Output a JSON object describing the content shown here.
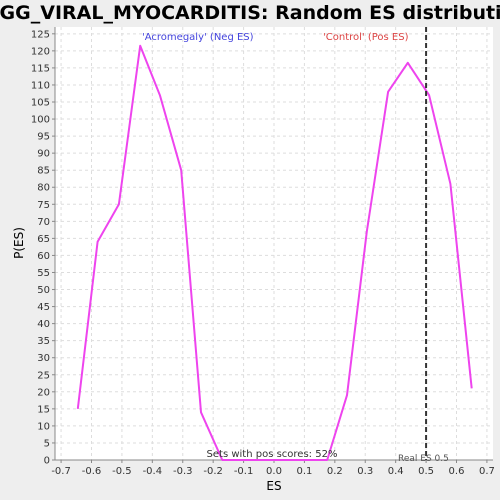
{
  "chart_data": {
    "type": "line",
    "title": "KEGG_VIRAL_MYOCARDITIS: Random ES distribution",
    "xlabel": "ES",
    "ylabel": "P(ES)",
    "xlim": [
      -0.72,
      0.72
    ],
    "ylim": [
      0,
      127
    ],
    "xticks": [
      -0.7,
      -0.6,
      -0.5,
      -0.4,
      -0.3,
      -0.2,
      -0.1,
      0.0,
      0.1,
      0.2,
      0.3,
      0.4,
      0.5,
      0.6,
      0.7
    ],
    "xtick_labels": [
      "-0.7",
      "-0.6",
      "-0.5",
      "-0.4",
      "-0.3",
      "-0.2",
      "-0.1",
      "0.0",
      "0.1",
      "0.2",
      "0.3",
      "0.4",
      "0.5",
      "0.6",
      "0.7"
    ],
    "yticks": [
      0,
      5,
      10,
      15,
      20,
      25,
      30,
      35,
      40,
      45,
      50,
      55,
      60,
      65,
      70,
      75,
      80,
      85,
      90,
      95,
      100,
      105,
      110,
      115,
      120,
      125
    ],
    "grid": true,
    "line_color": "#ee44ee",
    "series": [
      {
        "values": [
          [
            -0.645,
            15
          ],
          [
            -0.58,
            64
          ],
          [
            -0.51,
            75
          ],
          [
            -0.44,
            121.5
          ],
          [
            -0.375,
            107
          ],
          [
            -0.305,
            85
          ],
          [
            -0.24,
            14
          ],
          [
            -0.17,
            0
          ],
          [
            0.175,
            0
          ],
          [
            0.24,
            19
          ],
          [
            0.305,
            67
          ],
          [
            0.375,
            108
          ],
          [
            0.44,
            116.5
          ],
          [
            0.51,
            107
          ],
          [
            0.58,
            81
          ],
          [
            0.65,
            21
          ]
        ]
      }
    ],
    "real_es": 0.5,
    "real_es_color": "#333333",
    "annotations": {
      "neg_label": "'Acromegaly' (Neg ES)",
      "pos_label": "'Control' (Pos ES)",
      "pos_scores": "Sets with pos scores: 52%",
      "real_es_label": "Real ES 0.5"
    }
  }
}
